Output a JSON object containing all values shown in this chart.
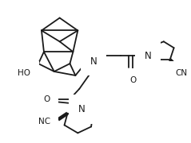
{
  "background_color": "#ffffff",
  "line_color": "#1a1a1a",
  "line_width": 1.3,
  "font_size": 7.5,
  "figsize": [
    2.39,
    1.8
  ],
  "dpi": 100,
  "xlim": [
    0,
    239
  ],
  "ylim": [
    0,
    180
  ]
}
